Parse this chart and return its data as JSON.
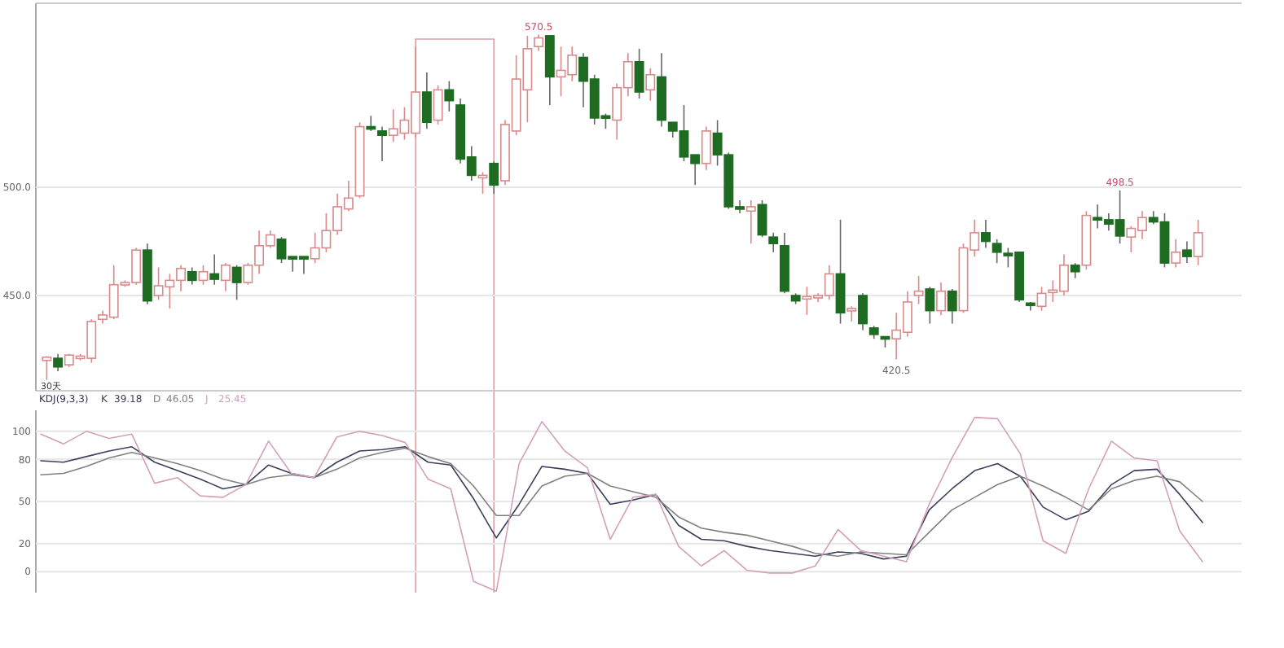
{
  "chart_data": [
    {
      "type": "candlestick",
      "categories": [
        null,
        null,
        null,
        null,
        null,
        null,
        null,
        null,
        null,
        null,
        null,
        null,
        null,
        null,
        null,
        null,
        null,
        null,
        null,
        null,
        null,
        null,
        null,
        null,
        null,
        null,
        null,
        null,
        null,
        null,
        null,
        null,
        null,
        null,
        null,
        null,
        null,
        null,
        null,
        null,
        null,
        null,
        null,
        null,
        null,
        null,
        null,
        null,
        null,
        null,
        null,
        null,
        null,
        null,
        null,
        null,
        null,
        null,
        null,
        null,
        null,
        null,
        null,
        null,
        null,
        null,
        null,
        null,
        null,
        null,
        null,
        null,
        null,
        null,
        null,
        null,
        null,
        null,
        null,
        null,
        null,
        null,
        null,
        null,
        null,
        null,
        null,
        null,
        null,
        null,
        null,
        null,
        null,
        null,
        null,
        null,
        null,
        null,
        null,
        null,
        null,
        null,
        null,
        null
      ],
      "ohlc": [
        [
          420,
          422,
          411,
          421.5
        ],
        [
          421,
          423,
          415,
          417
        ],
        [
          418,
          423,
          417,
          422.5
        ],
        [
          421,
          423,
          420,
          422
        ],
        [
          421,
          439,
          419,
          438
        ],
        [
          439,
          443,
          437,
          441
        ],
        [
          440,
          464,
          439,
          455
        ],
        [
          455,
          457,
          454,
          456
        ],
        [
          456,
          472,
          455,
          471
        ],
        [
          471,
          474,
          446,
          447.5
        ],
        [
          450,
          463,
          448,
          454.5
        ],
        [
          454,
          460,
          444,
          457
        ],
        [
          457,
          464,
          452,
          462.5
        ],
        [
          461,
          463,
          455,
          457
        ],
        [
          457,
          464,
          455,
          461
        ],
        [
          460,
          469,
          455,
          457.5
        ],
        [
          457,
          465,
          452,
          464
        ],
        [
          463,
          464,
          448,
          456
        ],
        [
          456,
          465,
          455,
          464
        ],
        [
          464,
          480,
          460,
          473
        ],
        [
          473,
          480,
          472,
          478
        ],
        [
          476,
          477,
          465,
          467
        ],
        [
          468,
          468,
          461,
          467.5
        ],
        [
          468,
          468,
          460,
          467
        ],
        [
          467,
          479,
          465,
          472
        ],
        [
          472,
          488,
          470,
          480
        ],
        [
          480,
          497,
          478,
          491
        ],
        [
          490,
          503,
          489,
          495
        ],
        [
          496,
          530,
          495,
          528
        ],
        [
          528,
          533,
          526,
          527
        ],
        [
          526,
          528,
          512,
          524
        ],
        [
          524,
          536,
          521,
          527
        ],
        [
          525,
          537,
          522,
          531
        ],
        [
          525,
          565,
          523,
          544
        ],
        [
          544,
          553,
          527,
          530
        ],
        [
          531,
          547,
          529,
          545
        ],
        [
          545,
          549,
          535,
          540
        ],
        [
          538,
          541,
          511,
          513
        ],
        [
          514,
          519,
          503,
          505.5
        ],
        [
          505,
          507,
          497,
          505.5
        ],
        [
          511,
          512,
          497,
          501
        ],
        [
          503,
          531,
          501,
          529
        ],
        [
          526,
          561,
          524,
          550
        ],
        [
          545,
          570,
          530,
          564
        ],
        [
          565,
          570.5,
          563,
          569
        ],
        [
          570,
          570.3,
          538,
          551
        ],
        [
          551,
          565,
          542,
          554
        ],
        [
          552,
          565,
          549,
          561
        ],
        [
          560,
          562,
          537,
          549
        ],
        [
          550,
          552,
          529,
          532
        ],
        [
          533,
          534,
          527,
          532
        ],
        [
          531,
          548,
          522,
          546
        ],
        [
          546,
          562,
          542,
          558
        ],
        [
          558,
          564,
          541,
          544
        ],
        [
          545,
          555,
          540,
          552
        ],
        [
          551,
          562,
          528,
          531
        ],
        [
          530,
          530,
          523,
          526
        ],
        [
          526,
          538,
          512,
          514
        ],
        [
          515,
          515,
          501,
          511
        ],
        [
          511,
          528,
          508,
          526
        ],
        [
          525,
          531,
          510,
          515
        ],
        [
          515,
          516,
          490,
          491
        ],
        [
          491,
          494,
          488,
          490.5
        ],
        [
          489,
          494,
          474,
          491
        ],
        [
          492,
          494,
          477,
          478
        ],
        [
          477,
          479,
          470,
          474
        ],
        [
          473,
          479,
          451,
          452
        ],
        [
          450,
          451,
          446,
          447.5
        ],
        [
          449,
          454,
          441,
          449.5
        ],
        [
          449,
          451,
          447,
          450
        ],
        [
          450,
          464,
          448,
          460
        ],
        [
          460,
          485,
          437,
          442
        ],
        [
          443,
          445,
          438,
          444
        ],
        [
          450,
          451,
          434,
          437
        ],
        [
          435,
          436,
          430,
          432
        ],
        [
          431,
          431,
          426,
          430
        ],
        [
          430,
          442,
          420.5,
          434
        ],
        [
          433,
          452,
          431,
          447
        ],
        [
          450,
          459,
          446,
          452
        ],
        [
          453,
          454,
          437,
          443
        ],
        [
          443,
          456,
          441,
          452
        ],
        [
          452,
          453,
          437,
          443
        ],
        [
          443,
          474,
          442,
          472
        ],
        [
          471,
          485,
          468,
          479
        ],
        [
          479,
          485,
          472,
          475
        ],
        [
          474,
          476,
          465,
          470
        ],
        [
          469.5,
          472,
          463,
          469
        ],
        [
          470,
          470,
          447,
          448
        ],
        [
          446.5,
          447,
          443,
          446
        ],
        [
          445,
          454,
          443,
          451
        ],
        [
          452,
          457,
          447,
          452.5
        ],
        [
          452,
          469,
          450,
          464
        ],
        [
          464,
          465,
          458,
          461
        ],
        [
          464,
          489,
          462,
          487
        ],
        [
          486,
          492,
          481,
          485
        ],
        [
          485,
          488,
          480,
          483
        ],
        [
          485,
          498.5,
          474,
          477.5
        ],
        [
          477,
          482,
          470,
          481
        ],
        [
          480,
          489,
          476,
          486
        ],
        [
          486,
          489,
          483,
          484
        ],
        [
          484,
          488,
          463,
          465
        ],
        [
          465,
          476,
          463,
          470
        ],
        [
          471,
          475,
          465,
          468
        ],
        [
          468,
          485,
          464,
          479
        ]
      ],
      "ylim": [
        406,
        585
      ],
      "yticks": [
        {
          "value": 450,
          "label": "450.0"
        },
        {
          "value": 500,
          "label": "500.0"
        }
      ],
      "grid": "y",
      "tick_labels": "y",
      "annotations": [
        "30天",
        {
          "text": "570.5",
          "y": 570.5
        },
        {
          "text": "420.5",
          "y": 420.5
        },
        {
          "text": "498.5",
          "y": 498.5
        }
      ]
    },
    {
      "type": "line",
      "title": "KDJ(9,3,3)",
      "categories": [
        null,
        null,
        null,
        null,
        null,
        null,
        null,
        null,
        null,
        null,
        null,
        null,
        null,
        null,
        null,
        null,
        null,
        null,
        null,
        null,
        null,
        null,
        null,
        null,
        null,
        null,
        null,
        null,
        null,
        null,
        null,
        null,
        null,
        null,
        null,
        null,
        null,
        null,
        null,
        null,
        null,
        null,
        null,
        null,
        null,
        null,
        null,
        null,
        null,
        null,
        null,
        null
      ],
      "series": [
        {
          "name": "K",
          "color": "#3a3f5c",
          "values": [
            79,
            78,
            82,
            86,
            89,
            78,
            72,
            66,
            59,
            62,
            76,
            70,
            67,
            78,
            86,
            87,
            89,
            78,
            76,
            52,
            24,
            48,
            75,
            73,
            70,
            48,
            51,
            55,
            33,
            23,
            22,
            18,
            15,
            13,
            11,
            14,
            13,
            9,
            11,
            44,
            59,
            72,
            77,
            68,
            46,
            37,
            43,
            62,
            72,
            73,
            55,
            35
          ]
        },
        {
          "name": "D",
          "color": "#808080",
          "values": [
            69,
            70,
            75,
            81,
            85,
            81,
            77,
            72,
            66,
            62,
            67,
            69,
            67,
            73,
            81,
            85,
            88,
            82,
            77,
            61,
            40,
            40,
            61,
            68,
            70,
            61,
            57,
            53,
            39,
            31,
            28,
            26,
            22,
            18,
            13,
            11,
            14,
            13,
            12,
            28,
            44,
            53,
            62,
            68,
            61,
            53,
            44,
            59,
            65,
            68,
            64,
            50
          ]
        },
        {
          "name": "J",
          "color": "#d4a0b8",
          "values": [
            98,
            91,
            100,
            95,
            98,
            63,
            67,
            54,
            53,
            62,
            93,
            70,
            67,
            96,
            100,
            97,
            92,
            66,
            59,
            -7,
            -14,
            77,
            107,
            86,
            74,
            23,
            53,
            55,
            18,
            4,
            15,
            1,
            -1,
            -1,
            4,
            30,
            15,
            11,
            7,
            48,
            81,
            110,
            109,
            84,
            22,
            13,
            59,
            93,
            81,
            79,
            29,
            7
          ]
        }
      ],
      "ylim": [
        -15,
        115
      ],
      "yticks": [
        0,
        20,
        50,
        80,
        100
      ],
      "grid": "y",
      "tick_labels": "y",
      "legend": "top left",
      "annotations": [
        "39.18",
        "46.05",
        "25.45"
      ]
    }
  ]
}
